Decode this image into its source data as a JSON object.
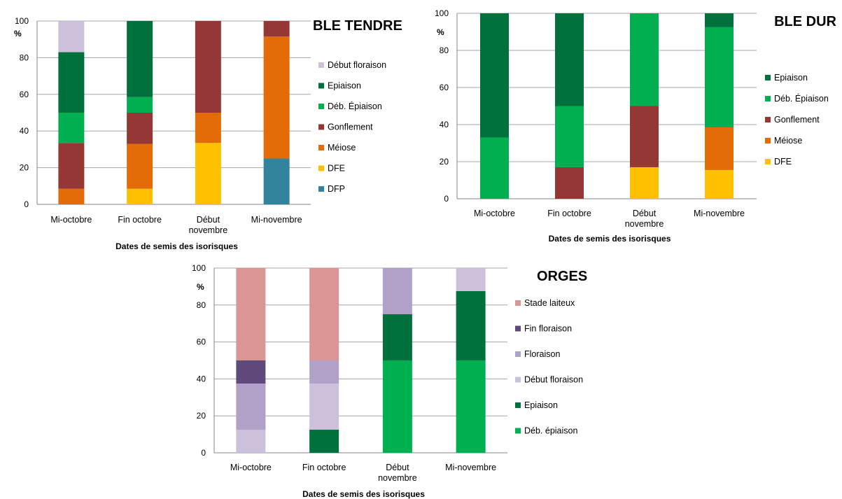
{
  "chart_data": [
    {
      "type": "bar",
      "stacked": true,
      "title": "BLE TENDRE",
      "ylabel": "%",
      "xlabel": "Dates de semis des isorisques",
      "ylim": [
        0,
        100
      ],
      "yticks": [
        0,
        20,
        40,
        60,
        80,
        100
      ],
      "grid": true,
      "legend_position": "right",
      "categories": [
        "Mi-octobre",
        "Fin octobre",
        "Début novembre",
        "Mi-novembre"
      ],
      "category_lines": [
        [
          "Mi-octobre"
        ],
        [
          "Fin octobre"
        ],
        [
          "Début",
          "novembre"
        ],
        [
          "Mi-novembre"
        ]
      ],
      "series": [
        {
          "name": "DFP",
          "color": "#31849b",
          "values": [
            0,
            0,
            0,
            25
          ]
        },
        {
          "name": "DFE",
          "color": "#ffc000",
          "values": [
            0,
            8.5,
            33.5,
            0
          ]
        },
        {
          "name": "Méiose",
          "color": "#e36c09",
          "values": [
            8.5,
            24.5,
            16.5,
            66.5
          ]
        },
        {
          "name": "Gonflement",
          "color": "#953735",
          "values": [
            25,
            17,
            50,
            8.5
          ]
        },
        {
          "name": "Déb. Épiaison",
          "color": "#00b050",
          "values": [
            16.5,
            8.5,
            0,
            0
          ]
        },
        {
          "name": "Epiaison",
          "color": "#00703c",
          "values": [
            33,
            41.5,
            0,
            0
          ]
        },
        {
          "name": "Début floraison",
          "color": "#ccc0da",
          "values": [
            17,
            0,
            0,
            0
          ]
        }
      ]
    },
    {
      "type": "bar",
      "stacked": true,
      "title": "BLE DUR",
      "ylabel": "%",
      "xlabel": "Dates de semis des isorisques",
      "ylim": [
        0,
        100
      ],
      "yticks": [
        0,
        20,
        40,
        60,
        80,
        100
      ],
      "grid": true,
      "legend_position": "right",
      "categories": [
        "Mi-octobre",
        "Fin octobre",
        "Début novembre",
        "Mi-novembre"
      ],
      "category_lines": [
        [
          "Mi-octobre"
        ],
        [
          "Fin octobre"
        ],
        [
          "Début",
          "novembre"
        ],
        [
          "Mi-novembre"
        ]
      ],
      "series": [
        {
          "name": "DFE",
          "color": "#ffc000",
          "values": [
            0,
            0,
            17,
            15.5
          ]
        },
        {
          "name": "Méiose",
          "color": "#e36c09",
          "values": [
            0,
            0,
            0,
            23
          ]
        },
        {
          "name": "Gonflement",
          "color": "#953735",
          "values": [
            0,
            17,
            33,
            0
          ]
        },
        {
          "name": "Déb. Épiaison",
          "color": "#00b050",
          "values": [
            33,
            33,
            50,
            54
          ]
        },
        {
          "name": "Epiaison",
          "color": "#00703c",
          "values": [
            67,
            50,
            0,
            7.5
          ]
        }
      ]
    },
    {
      "type": "bar",
      "stacked": true,
      "title": "ORGES",
      "ylabel": "%",
      "xlabel": "Dates de semis des isorisques",
      "ylim": [
        0,
        100
      ],
      "yticks": [
        0,
        20,
        40,
        60,
        80,
        100
      ],
      "grid": true,
      "legend_position": "right",
      "categories": [
        "Mi-octobre",
        "Fin octobre",
        "Début novembre",
        "Mi-novembre"
      ],
      "category_lines": [
        [
          "Mi-octobre"
        ],
        [
          "Fin octobre"
        ],
        [
          "Début",
          "novembre"
        ],
        [
          "Mi-novembre"
        ]
      ],
      "series": [
        {
          "name": "Déb. épiaison",
          "color": "#00b050",
          "values": [
            0,
            0,
            50,
            50
          ]
        },
        {
          "name": "Epiaison",
          "color": "#00703c",
          "values": [
            0,
            12.5,
            25,
            37.5
          ]
        },
        {
          "name": "Début floraison",
          "color": "#ccc0da",
          "values": [
            12.5,
            25,
            0,
            12.5
          ]
        },
        {
          "name": "Floraison",
          "color": "#b1a0c7",
          "values": [
            25,
            12.5,
            25,
            0
          ]
        },
        {
          "name": "Fin floraison",
          "color": "#604a7b",
          "values": [
            12.5,
            0,
            0,
            0
          ]
        },
        {
          "name": "Stade laiteux",
          "color": "#da9694",
          "values": [
            50,
            50,
            0,
            0
          ]
        }
      ]
    }
  ]
}
